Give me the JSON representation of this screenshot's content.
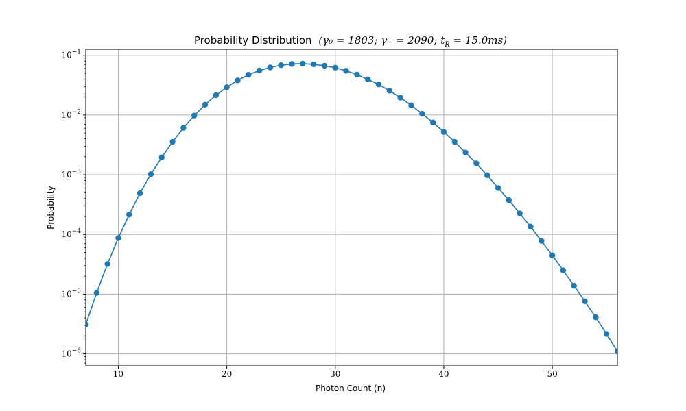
{
  "chart_data": {
    "type": "line",
    "title": "Probability Distribution",
    "title_params": [
      "(γ₀ = 1803; γ₋ = 2090; t",
      "R",
      " = 15.0ms)"
    ],
    "xlabel": "Photon Count (n)",
    "ylabel": "Probability",
    "xlim": [
      7,
      56
    ],
    "ylim_log10": [
      -6.2,
      -0.9
    ],
    "yscale": "log",
    "grid": true,
    "x_ticks": [
      10,
      20,
      30,
      40,
      50
    ],
    "x_tick_labels": [
      "10",
      "20",
      "30",
      "40",
      "50"
    ],
    "y_tick_exponents": [
      -1,
      -2,
      -3,
      -4,
      -5,
      -6
    ],
    "y_tick_labels": [
      {
        "base": "10",
        "exp": "−1"
      },
      {
        "base": "10",
        "exp": "−2"
      },
      {
        "base": "10",
        "exp": "−3"
      },
      {
        "base": "10",
        "exp": "−4"
      },
      {
        "base": "10",
        "exp": "−5"
      },
      {
        "base": "10",
        "exp": "−6"
      }
    ],
    "series_color": "#1f77b4",
    "x": [
      7,
      8,
      9,
      10,
      11,
      12,
      13,
      14,
      15,
      16,
      17,
      18,
      19,
      20,
      21,
      22,
      23,
      24,
      25,
      26,
      27,
      28,
      29,
      30,
      31,
      32,
      33,
      34,
      35,
      36,
      37,
      38,
      39,
      40,
      41,
      42,
      43,
      44,
      45,
      46,
      47,
      48,
      49,
      50,
      51,
      52,
      53,
      54,
      55,
      56
    ],
    "values": [
      3.1e-06,
      1.05e-05,
      3.2e-05,
      8.7e-05,
      0.000215,
      0.00049,
      0.00102,
      0.00195,
      0.00355,
      0.0061,
      0.0098,
      0.0149,
      0.0214,
      0.0292,
      0.038,
      0.0472,
      0.0555,
      0.0625,
      0.0682,
      0.0715,
      0.0725,
      0.0705,
      0.0668,
      0.062,
      0.055,
      0.0475,
      0.0395,
      0.0325,
      0.0255,
      0.0195,
      0.0145,
      0.0105,
      0.0075,
      0.0052,
      0.00355,
      0.00235,
      0.00155,
      0.00098,
      0.0006,
      0.000375,
      0.000225,
      0.000135,
      7.8e-05,
      4.45e-05,
      2.5e-05,
      1.38e-05,
      7.6e-06,
      4.1e-06,
      2.15e-06,
      1.1e-06
    ]
  }
}
